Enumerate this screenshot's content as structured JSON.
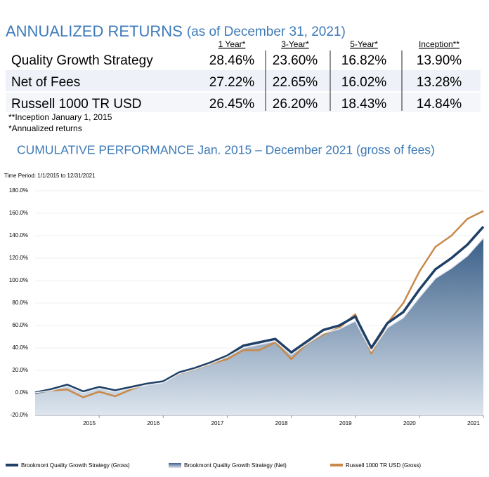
{
  "header": {
    "title": "ANNUALIZED RETURNS",
    "subtitle": "(as of December 31, 2021)"
  },
  "table": {
    "columns": [
      "1 Year*",
      "3-Year*",
      "5-Year*",
      "Inception**"
    ],
    "rows": [
      {
        "label": "Quality Growth Strategy",
        "values": [
          "28.46%",
          "23.60%",
          "16.82%",
          "13.90%"
        ]
      },
      {
        "label": "Net of Fees",
        "values": [
          "27.22%",
          "22.65%",
          "16.02%",
          "13.28%"
        ]
      },
      {
        "label": "Russell 1000 TR USD",
        "values": [
          "26.45%",
          "26.20%",
          "18.43%",
          "14.84%"
        ]
      }
    ]
  },
  "notes": [
    "**Inception January 1, 2015",
    "*Annualized returns"
  ],
  "chart_data": {
    "type": "area-line",
    "title": "CUMULATIVE PERFORMANCE Jan. 2015 – December 2021 (gross of fees)",
    "subtitle": "Time Period: 1/1/2015 to 12/31/2021",
    "categories": [
      null,
      null,
      null,
      null,
      "2015",
      null,
      null,
      null,
      "2016",
      null,
      null,
      null,
      "2017",
      null,
      null,
      null,
      "2018",
      null,
      null,
      null,
      "2019",
      null,
      null,
      null,
      "2020",
      null,
      null,
      null,
      "2021"
    ],
    "series": [
      {
        "name": "Brookmont Quality Growth Strategy (Gross)",
        "color": "#1f3f66",
        "values": [
          0,
          3,
          7,
          1,
          5,
          2,
          5,
          8,
          10,
          18,
          22,
          27,
          33,
          42,
          45,
          48,
          36,
          46,
          56,
          60,
          68,
          40,
          62,
          72,
          92,
          110,
          120,
          132,
          148
        ]
      },
      {
        "name": "Brookmont Quality Growth Strategy (Net)",
        "color": "#4a6d93",
        "values": [
          0,
          2,
          6,
          0,
          4,
          1,
          4,
          7,
          9,
          17,
          21,
          26,
          32,
          40,
          43,
          46,
          34,
          44,
          53,
          57,
          64,
          37,
          58,
          67,
          85,
          102,
          111,
          122,
          138
        ]
      },
      {
        "name": "Russell 1000 TR USD (Gross)",
        "color": "#c8894a",
        "values": [
          0,
          2,
          3,
          -4,
          1,
          -3,
          3,
          8,
          10,
          17,
          21,
          26,
          30,
          38,
          38,
          45,
          30,
          44,
          52,
          58,
          70,
          35,
          62,
          80,
          108,
          130,
          140,
          155,
          162
        ]
      }
    ],
    "ylim": [
      -20,
      180
    ],
    "yticks": [
      {
        "value": -20,
        "label": "-20.0%"
      },
      {
        "value": 0,
        "label": "0.0%"
      },
      {
        "value": 20,
        "label": "20.0%"
      },
      {
        "value": 40,
        "label": "40.0%"
      },
      {
        "value": 60,
        "label": "60.0%"
      },
      {
        "value": 80,
        "label": "80.0%"
      },
      {
        "value": 100,
        "label": "100.0%"
      },
      {
        "value": 120,
        "label": "120.0%"
      },
      {
        "value": 140,
        "label": "140.0%"
      },
      {
        "value": 160,
        "label": "160.0%"
      },
      {
        "value": 180,
        "label": "180.0%"
      }
    ],
    "grid": true,
    "legend": "bottom"
  }
}
